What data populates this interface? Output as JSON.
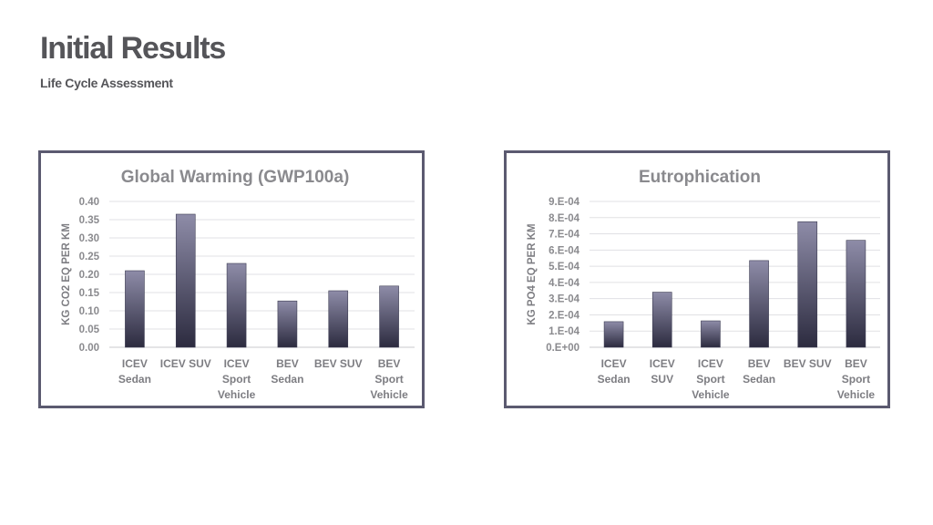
{
  "header": {
    "title": "Initial Results",
    "subtitle": "Life Cycle Assessment"
  },
  "colors": {
    "bar_top": "#8e8ca8",
    "bar_bottom": "#2c2b3f",
    "frame": "#5b5a70"
  },
  "chart_data": [
    {
      "type": "bar",
      "title": "Global Warming (GWP100a)",
      "ylabel": "KG CO2 EQ PER KM",
      "xlabel": "",
      "ylim": [
        0,
        0.4
      ],
      "grid": true,
      "legend": "none",
      "y_ticks": [
        "0.00",
        "0.05",
        "0.10",
        "0.15",
        "0.20",
        "0.25",
        "0.30",
        "0.35",
        "0.40"
      ],
      "categories": [
        [
          "ICEV",
          "Sedan"
        ],
        [
          "ICEV SUV"
        ],
        [
          "ICEV",
          "Sport",
          "Vehicle"
        ],
        [
          "BEV",
          "Sedan"
        ],
        [
          "BEV SUV"
        ],
        [
          "BEV",
          "Sport",
          "Vehicle"
        ]
      ],
      "values": [
        0.21,
        0.365,
        0.23,
        0.127,
        0.155,
        0.168
      ]
    },
    {
      "type": "bar",
      "title": "Eutrophication",
      "ylabel": "KG PO4 EQ PER KM",
      "xlabel": "",
      "ylim": [
        0,
        0.0009
      ],
      "grid": true,
      "legend": "none",
      "y_ticks": [
        "0.E+00",
        "1.E-04",
        "2.E-04",
        "3.E-04",
        "4.E-04",
        "5.E-04",
        "6.E-04",
        "7.E-04",
        "8.E-04",
        "9.E-04"
      ],
      "categories": [
        [
          "ICEV",
          "Sedan"
        ],
        [
          "ICEV",
          "SUV"
        ],
        [
          "ICEV",
          "Sport",
          "Vehicle"
        ],
        [
          "BEV",
          "Sedan"
        ],
        [
          "BEV SUV"
        ],
        [
          "BEV",
          "Sport",
          "Vehicle"
        ]
      ],
      "values": [
        0.000158,
        0.00034,
        0.000163,
        0.000535,
        0.000775,
        0.00066
      ]
    }
  ]
}
